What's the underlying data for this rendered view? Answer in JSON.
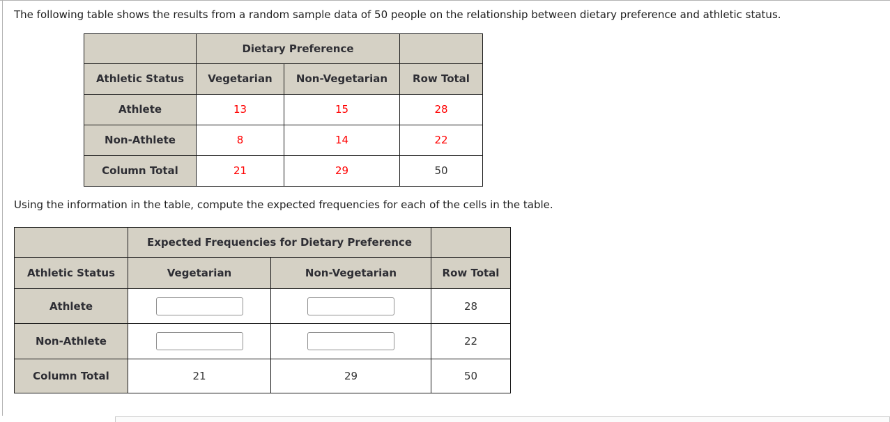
{
  "colors": {
    "header_bg": "#d5d1c5",
    "table_border": "#1a1a1a",
    "value_red": "#ff0000",
    "value_dark": "#333333",
    "text": "#1f1f1f",
    "page_border": "#b2b2b2"
  },
  "intro_text": "The following table shows the results from a random sample data of 50 people on the relationship between dietary preference and athletic status.",
  "instruction_text": "Using the information in the table, compute the expected frequencies for each of the cells in the table.",
  "observed_table": {
    "group_header": "Dietary Preference",
    "column_headers": [
      "Athletic Status",
      "Vegetarian",
      "Non-Vegetarian",
      "Row Total"
    ],
    "rows": [
      {
        "label": "Athlete",
        "vegetarian": "13",
        "non_vegetarian": "15",
        "row_total": "28"
      },
      {
        "label": "Non-Athlete",
        "vegetarian": "8",
        "non_vegetarian": "14",
        "row_total": "22"
      },
      {
        "label": "Column Total",
        "vegetarian": "21",
        "non_vegetarian": "29",
        "row_total": "50"
      }
    ]
  },
  "expected_table": {
    "group_header": "Expected Frequencies for Dietary Preference",
    "column_headers": [
      "Athletic Status",
      "Vegetarian",
      "Non-Vegetarian",
      "Row Total"
    ],
    "rows": [
      {
        "label": "Athlete",
        "vegetarian_input": "",
        "non_vegetarian_input": "",
        "row_total": "28"
      },
      {
        "label": "Non-Athlete",
        "vegetarian_input": "",
        "non_vegetarian_input": "",
        "row_total": "22"
      },
      {
        "label": "Column Total",
        "vegetarian": "21",
        "non_vegetarian": "29",
        "row_total": "50"
      }
    ]
  }
}
